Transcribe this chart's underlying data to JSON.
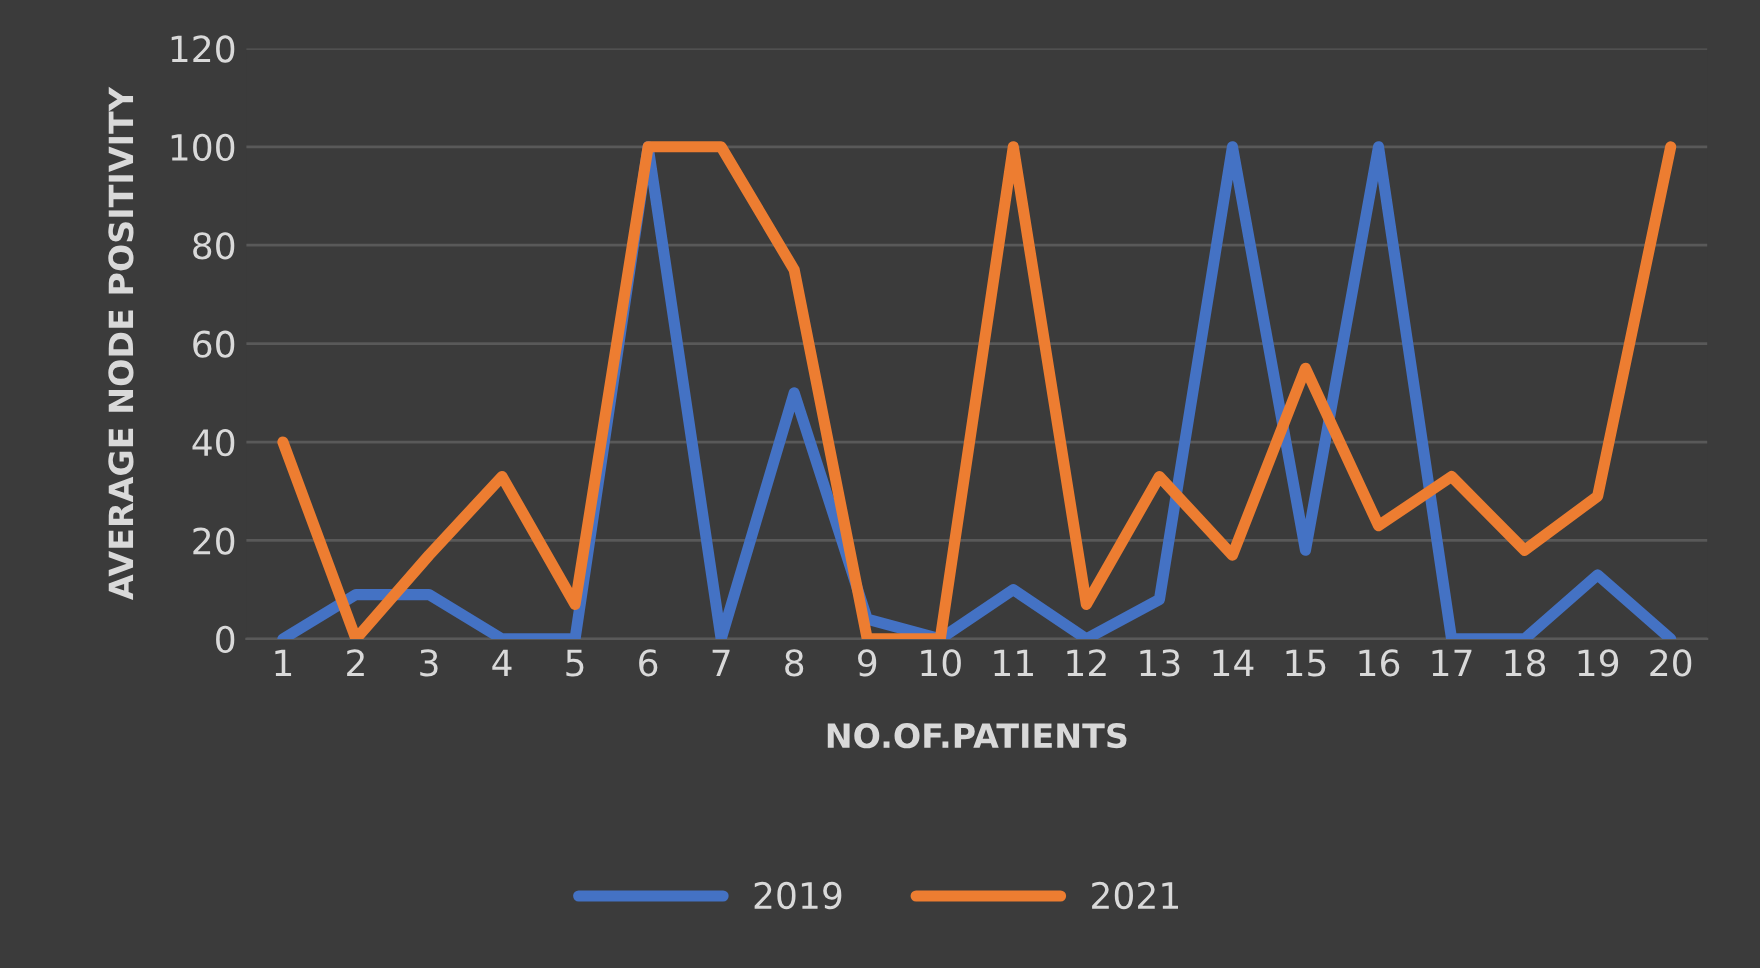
{
  "chart_data": {
    "type": "line",
    "xlabel": "NO.OF.PATIENTS",
    "ylabel": "AVERAGE NODE POSITIVITY",
    "categories": [
      "1",
      "2",
      "3",
      "4",
      "5",
      "6",
      "7",
      "8",
      "9",
      "10",
      "11",
      "12",
      "13",
      "14",
      "15",
      "16",
      "17",
      "18",
      "19",
      "20"
    ],
    "series": [
      {
        "name": "2019",
        "color": "#4472c4",
        "values": [
          0,
          9,
          9,
          0,
          0,
          100,
          0,
          50,
          4,
          0,
          10,
          0,
          8,
          100,
          18,
          100,
          0,
          0,
          13,
          0
        ]
      },
      {
        "name": "2021",
        "color": "#ed7d31",
        "values": [
          40,
          0,
          17,
          33,
          7,
          100,
          100,
          75,
          0,
          0,
          100,
          7,
          33,
          17,
          55,
          23,
          33,
          18,
          29,
          100
        ]
      }
    ],
    "ylim": [
      0,
      120
    ],
    "yticks": [
      0,
      20,
      40,
      60,
      80,
      100,
      120
    ],
    "grid": "y",
    "legend": "bottom",
    "marker": "none",
    "line_style": "solid"
  }
}
